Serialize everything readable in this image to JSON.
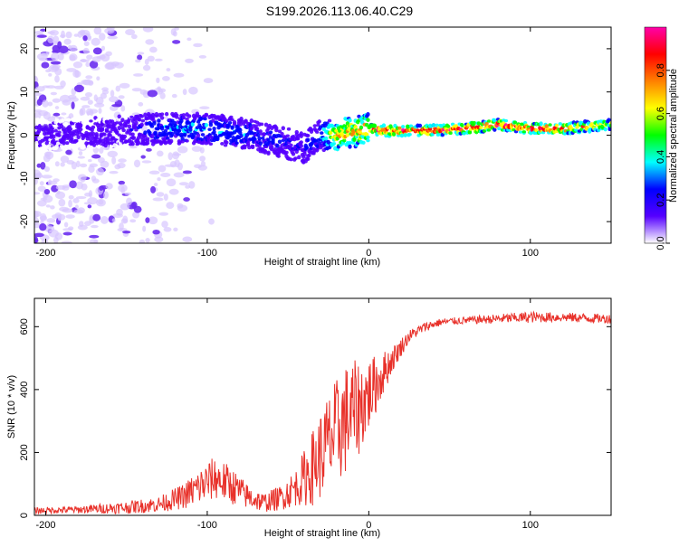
{
  "title": "S199.2026.113.06.40.C29",
  "colors": {
    "snr_line": "#e8312a",
    "axis": "#000000",
    "heat_dot": "#6a2cf0",
    "heat_faint": "#d7c6ff"
  },
  "colorbar": {
    "label": "Normalized spectral amplitude",
    "ticks": [
      "0.0",
      "0.2",
      "0.4",
      "0.6",
      "0.8"
    ],
    "tick_values": [
      0.0,
      0.2,
      0.4,
      0.6,
      0.8
    ],
    "range": [
      0,
      1
    ],
    "stops": [
      "#ffffff",
      "#5500ff",
      "#0000ff",
      "#00ffff",
      "#00ff00",
      "#ffff00",
      "#ff8000",
      "#ff0000",
      "#ff00aa"
    ]
  },
  "chart_data": [
    {
      "type": "heatmap",
      "title": "S199.2026.113.06.40.C29",
      "xlabel": "Height of straight line (km)",
      "ylabel": "Frequency (Hz)",
      "xlim": [
        -207,
        150
      ],
      "ylim": [
        -25,
        25
      ],
      "x_ticks": [
        -200,
        -100,
        0,
        100
      ],
      "x_tick_labels": [
        "-200",
        "-100",
        "0",
        "100"
      ],
      "y_ticks": [
        20,
        10,
        0,
        -10,
        -20
      ],
      "y_tick_labels": [
        "20",
        "10",
        "0",
        "-10",
        "-20"
      ],
      "ridge": {
        "x": [
          -210,
          -150,
          -130,
          -100,
          -80,
          -60,
          -40,
          -30,
          -20,
          0,
          10,
          30,
          60,
          80,
          100,
          120,
          150
        ],
        "freq": [
          0,
          1,
          1.5,
          1.5,
          0.5,
          -1,
          -3,
          0,
          0,
          1.5,
          1,
          1,
          1.5,
          2.5,
          1.5,
          1.5,
          2.5
        ],
        "amplitude": [
          0.1,
          0.15,
          0.3,
          0.35,
          0.3,
          0.25,
          0.2,
          0.3,
          0.7,
          0.75,
          0.95,
          0.9,
          0.9,
          0.95,
          0.9,
          0.9,
          0.6
        ]
      }
    },
    {
      "type": "line",
      "xlabel": "Height of straight line (km)",
      "ylabel": "SNR (10 * v/v)",
      "xlim": [
        -207,
        150
      ],
      "ylim": [
        0,
        690
      ],
      "x_ticks": [
        -200,
        -100,
        0,
        100
      ],
      "x_tick_labels": [
        "-200",
        "-100",
        "0",
        "100"
      ],
      "y_ticks": [
        0,
        200,
        400,
        600
      ],
      "y_tick_labels": [
        "0",
        "200",
        "400",
        "600"
      ],
      "trend": {
        "x": [
          -207,
          -180,
          -150,
          -130,
          -115,
          -105,
          -95,
          -85,
          -75,
          -65,
          -55,
          -45,
          -35,
          -25,
          -15,
          -5,
          5,
          15,
          25,
          35,
          45,
          60,
          80,
          100,
          120,
          150
        ],
        "y": [
          15,
          18,
          25,
          35,
          60,
          90,
          120,
          95,
          60,
          40,
          55,
          90,
          150,
          230,
          300,
          350,
          420,
          500,
          570,
          600,
          615,
          620,
          625,
          630,
          630,
          625
        ],
        "noise": [
          10,
          12,
          20,
          25,
          40,
          60,
          70,
          60,
          40,
          30,
          40,
          60,
          120,
          160,
          180,
          150,
          90,
          40,
          20,
          15,
          12,
          12,
          15,
          18,
          15,
          15
        ]
      }
    }
  ]
}
